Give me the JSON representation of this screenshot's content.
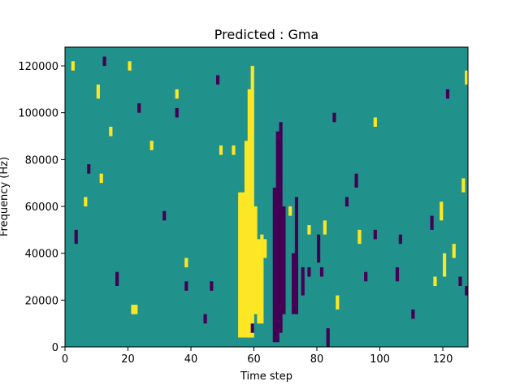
{
  "chart_data": {
    "type": "heatmap",
    "title": "Predicted : Gma",
    "xlabel": "Time step",
    "ylabel": "Frequency (Hz)",
    "xlim": [
      0,
      128
    ],
    "ylim": [
      0,
      128000
    ],
    "x_ticks": [
      0,
      20,
      40,
      60,
      80,
      100,
      120
    ],
    "x_tick_labels": [
      "0",
      "20",
      "40",
      "60",
      "80",
      "100",
      "120"
    ],
    "y_ticks": [
      0,
      20000,
      40000,
      60000,
      80000,
      100000,
      120000
    ],
    "y_tick_labels": [
      "0",
      "20000",
      "40000",
      "60000",
      "80000",
      "100000",
      "120000"
    ],
    "grid": false,
    "legend": "none",
    "colormap": "viridis",
    "colors": {
      "background": "#21918c",
      "high": "#fde725",
      "low": "#440154"
    },
    "background_value": 0,
    "cells": [
      {
        "x": 2,
        "y0": 118000,
        "y1": 122000,
        "v": 1
      },
      {
        "x": 6,
        "y0": 60000,
        "y1": 64000,
        "v": 1
      },
      {
        "x": 10,
        "y0": 106000,
        "y1": 112000,
        "v": 1
      },
      {
        "x": 11,
        "y0": 70000,
        "y1": 74000,
        "v": 1
      },
      {
        "x": 14,
        "y0": 90000,
        "y1": 94000,
        "v": 1
      },
      {
        "x": 20,
        "y0": 118000,
        "y1": 122000,
        "v": 1
      },
      {
        "x": 21,
        "y0": 14000,
        "y1": 18000,
        "v": 1
      },
      {
        "x": 22,
        "y0": 14000,
        "y1": 18000,
        "v": 1
      },
      {
        "x": 27,
        "y0": 84000,
        "y1": 88000,
        "v": 1
      },
      {
        "x": 35,
        "y0": 106000,
        "y1": 110000,
        "v": 1
      },
      {
        "x": 38,
        "y0": 34000,
        "y1": 38000,
        "v": 1
      },
      {
        "x": 49,
        "y0": 82000,
        "y1": 86000,
        "v": 1
      },
      {
        "x": 53,
        "y0": 82000,
        "y1": 86000,
        "v": 1
      },
      {
        "x": 55,
        "y0": 4000,
        "y1": 66000,
        "v": 1
      },
      {
        "x": 56,
        "y0": 4000,
        "y1": 66000,
        "v": 1
      },
      {
        "x": 57,
        "y0": 4000,
        "y1": 88000,
        "v": 1
      },
      {
        "x": 58,
        "y0": 4000,
        "y1": 110000,
        "v": 1
      },
      {
        "x": 59,
        "y0": 4000,
        "y1": 120000,
        "v": 1
      },
      {
        "x": 60,
        "y0": 14000,
        "y1": 60000,
        "v": 1
      },
      {
        "x": 61,
        "y0": 10000,
        "y1": 46000,
        "v": 1
      },
      {
        "x": 62,
        "y0": 10000,
        "y1": 48000,
        "v": 1
      },
      {
        "x": 63,
        "y0": 38000,
        "y1": 46000,
        "v": 1
      },
      {
        "x": 71,
        "y0": 56000,
        "y1": 60000,
        "v": 1
      },
      {
        "x": 77,
        "y0": 48000,
        "y1": 52000,
        "v": 1
      },
      {
        "x": 82,
        "y0": 48000,
        "y1": 54000,
        "v": 1
      },
      {
        "x": 86,
        "y0": 16000,
        "y1": 22000,
        "v": 1
      },
      {
        "x": 93,
        "y0": 44000,
        "y1": 50000,
        "v": 1
      },
      {
        "x": 98,
        "y0": 94000,
        "y1": 98000,
        "v": 1
      },
      {
        "x": 117,
        "y0": 26000,
        "y1": 30000,
        "v": 1
      },
      {
        "x": 119,
        "y0": 54000,
        "y1": 62000,
        "v": 1
      },
      {
        "x": 120,
        "y0": 30000,
        "y1": 40000,
        "v": 1
      },
      {
        "x": 123,
        "y0": 38000,
        "y1": 44000,
        "v": 1
      },
      {
        "x": 126,
        "y0": 66000,
        "y1": 72000,
        "v": 1
      },
      {
        "x": 127,
        "y0": 112000,
        "y1": 118000,
        "v": 1
      },
      {
        "x": 3,
        "y0": 44000,
        "y1": 50000,
        "v": -1
      },
      {
        "x": 7,
        "y0": 74000,
        "y1": 78000,
        "v": -1
      },
      {
        "x": 12,
        "y0": 120000,
        "y1": 124000,
        "v": -1
      },
      {
        "x": 16,
        "y0": 26000,
        "y1": 32000,
        "v": -1
      },
      {
        "x": 23,
        "y0": 100000,
        "y1": 104000,
        "v": -1
      },
      {
        "x": 31,
        "y0": 54000,
        "y1": 58000,
        "v": -1
      },
      {
        "x": 35,
        "y0": 98000,
        "y1": 102000,
        "v": -1
      },
      {
        "x": 38,
        "y0": 24000,
        "y1": 28000,
        "v": -1
      },
      {
        "x": 44,
        "y0": 10000,
        "y1": 14000,
        "v": -1
      },
      {
        "x": 46,
        "y0": 24000,
        "y1": 28000,
        "v": -1
      },
      {
        "x": 48,
        "y0": 112000,
        "y1": 116000,
        "v": -1
      },
      {
        "x": 59,
        "y0": 6000,
        "y1": 10000,
        "v": -1
      },
      {
        "x": 66,
        "y0": 2000,
        "y1": 68000,
        "v": -1
      },
      {
        "x": 67,
        "y0": 2000,
        "y1": 92000,
        "v": -1
      },
      {
        "x": 68,
        "y0": 6000,
        "y1": 96000,
        "v": -1
      },
      {
        "x": 69,
        "y0": 14000,
        "y1": 60000,
        "v": -1
      },
      {
        "x": 72,
        "y0": 14000,
        "y1": 40000,
        "v": -1
      },
      {
        "x": 73,
        "y0": 14000,
        "y1": 64000,
        "v": -1
      },
      {
        "x": 75,
        "y0": 22000,
        "y1": 34000,
        "v": -1
      },
      {
        "x": 77,
        "y0": 30000,
        "y1": 34000,
        "v": -1
      },
      {
        "x": 80,
        "y0": 36000,
        "y1": 48000,
        "v": -1
      },
      {
        "x": 81,
        "y0": 30000,
        "y1": 34000,
        "v": -1
      },
      {
        "x": 83,
        "y0": 0,
        "y1": 8000,
        "v": -1
      },
      {
        "x": 85,
        "y0": 96000,
        "y1": 100000,
        "v": -1
      },
      {
        "x": 89,
        "y0": 60000,
        "y1": 64000,
        "v": -1
      },
      {
        "x": 92,
        "y0": 68000,
        "y1": 74000,
        "v": -1
      },
      {
        "x": 95,
        "y0": 28000,
        "y1": 32000,
        "v": -1
      },
      {
        "x": 98,
        "y0": 46000,
        "y1": 50000,
        "v": -1
      },
      {
        "x": 105,
        "y0": 28000,
        "y1": 34000,
        "v": -1
      },
      {
        "x": 106,
        "y0": 44000,
        "y1": 48000,
        "v": -1
      },
      {
        "x": 110,
        "y0": 12000,
        "y1": 16000,
        "v": -1
      },
      {
        "x": 116,
        "y0": 50000,
        "y1": 56000,
        "v": -1
      },
      {
        "x": 121,
        "y0": 106000,
        "y1": 110000,
        "v": -1
      },
      {
        "x": 125,
        "y0": 26000,
        "y1": 30000,
        "v": -1
      },
      {
        "x": 127,
        "y0": 22000,
        "y1": 26000,
        "v": -1
      }
    ]
  }
}
